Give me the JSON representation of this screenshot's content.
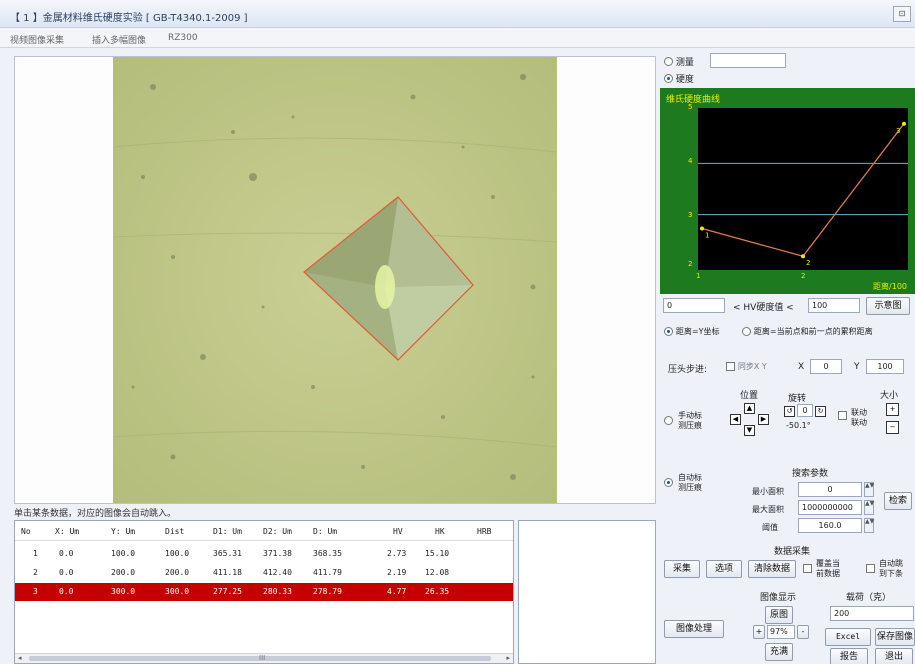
{
  "window": {
    "title": "【 1 】金属材料维氏硬度实验 [   GB-T4340.1-2009  ]",
    "close_glyph": "⊡"
  },
  "menu": [
    "视频图像采集",
    "插入多幅图像",
    "RZ300"
  ],
  "image_caption": "单击某条数据，对应的图像会自动跳入。",
  "table": {
    "headers": [
      "No",
      "X: Um",
      "Y: Um",
      "Dist",
      "D1: Um",
      "D2: Um",
      "D: Um",
      "HV",
      "HK",
      "HRB"
    ],
    "rows": [
      [
        "1",
        "0.0",
        "100.0",
        "100.0",
        "365.31",
        "371.38",
        "368.35",
        "2.73",
        "15.10",
        ""
      ],
      [
        "2",
        "0.0",
        "200.0",
        "200.0",
        "411.18",
        "412.40",
        "411.79",
        "2.19",
        "12.08",
        ""
      ],
      [
        "3",
        "0.0",
        "300.0",
        "300.0",
        "277.25",
        "280.33",
        "278.79",
        "4.77",
        "26.35",
        ""
      ]
    ],
    "selected_row": 2,
    "scroll_center": "III"
  },
  "mode": {
    "measure_label": "测量",
    "hardness_label": "硬度",
    "selected": "hardness",
    "measure_value": ""
  },
  "chart_data": {
    "type": "line",
    "title": "维氏硬度曲线",
    "xlabel": "距离/100",
    "ylabel": "",
    "x": [
      1,
      2,
      3
    ],
    "series": [
      {
        "name": "",
        "values": [
          2.73,
          2.19,
          4.77
        ],
        "point_labels": [
          "1",
          "2",
          "3"
        ]
      }
    ],
    "xlim": [
      1,
      3
    ],
    "ylim": [
      2,
      5
    ],
    "yticks": [
      "2",
      "3",
      "4",
      "5"
    ],
    "xticks": [
      "1",
      "2",
      "3"
    ],
    "grid": true,
    "colors": {
      "background": "#1e7a1e",
      "plot": "#000000",
      "line": "#e07850",
      "grid": "#6fb5c8",
      "text": "#e8f000"
    }
  },
  "range": {
    "min": "0",
    "middle_label": "< HV硬度值 <",
    "max": "100",
    "button": "示意图"
  },
  "distance_mode": {
    "opt1": "距离=Y坐标",
    "opt2": "距离=当前点和前一点的累积距离",
    "selected": "opt1"
  },
  "indenter_step": {
    "label": "压头步进:",
    "sync_label": "同步X Y",
    "x_label": "X",
    "x_value": "0",
    "y_label": "Y",
    "y_value": "100"
  },
  "manual": {
    "label": "手动标\n测压痕",
    "position_label": "位置",
    "rotate_label": "旋转",
    "rotate_value": "0",
    "angle_value": "-50.1°",
    "link_label": "联动\n联动",
    "size_label": "大小"
  },
  "auto": {
    "label": "自动标\n测压痕",
    "params_label": "搜索参数",
    "min_area_label": "最小面积",
    "min_area_value": "0",
    "max_area_label": "最大面积",
    "max_area_value": "1000000000",
    "threshold_label": "阈值",
    "threshold_value": "160.0",
    "search_button": "检索"
  },
  "acquire": {
    "label": "数据采集",
    "collect": "采集",
    "select": "选项",
    "clear": "清除数据",
    "overwrite": "覆盖当\n前数据",
    "auto_jump": "自动跳\n到下条"
  },
  "display": {
    "process_button": "图像处理",
    "label": "图像显示",
    "original": "原图",
    "zoom_in": "+",
    "zoom": "97%",
    "zoom_out": "-",
    "fill": "充满"
  },
  "load": {
    "label": "载荷（克）",
    "value": "200",
    "excel": "Excel",
    "save_image": "保存图像",
    "report": "报告",
    "exit": "退出"
  }
}
